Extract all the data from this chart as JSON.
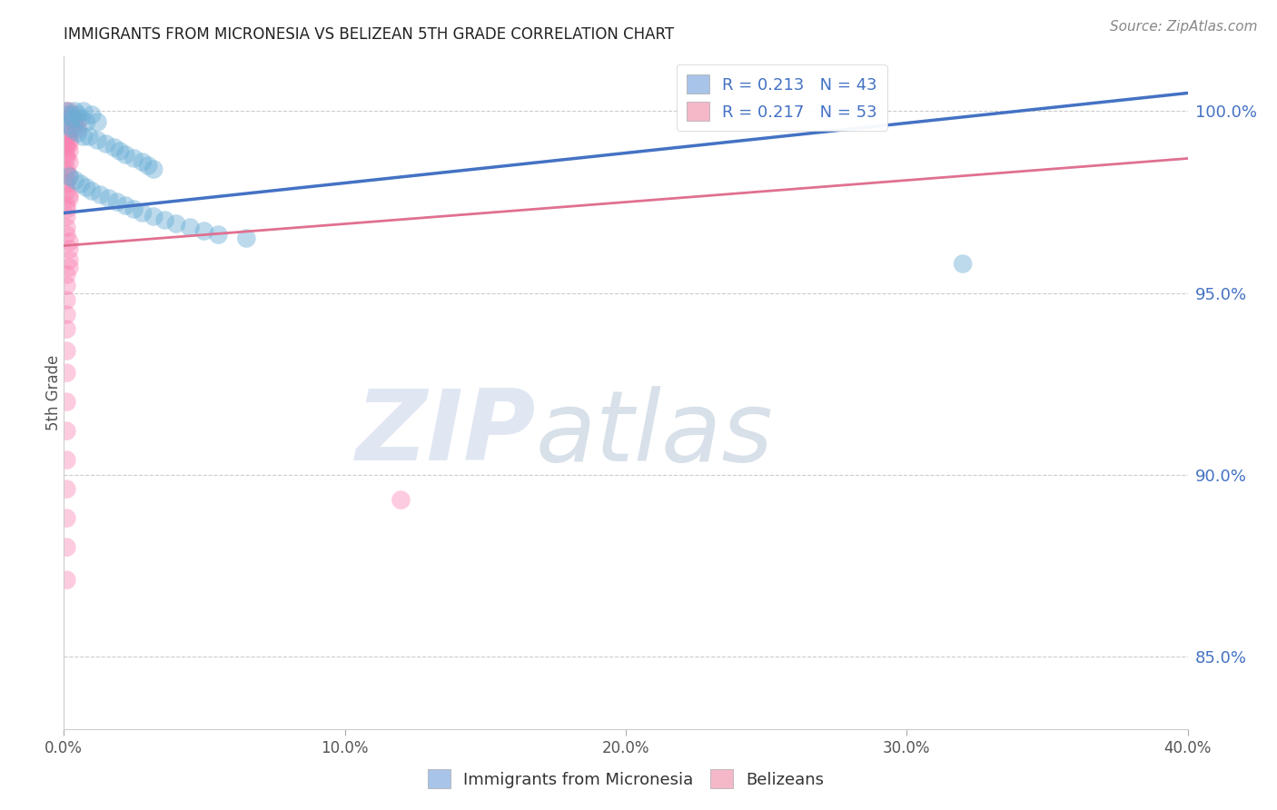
{
  "title": "IMMIGRANTS FROM MICRONESIA VS BELIZEAN 5TH GRADE CORRELATION CHART",
  "source": "Source: ZipAtlas.com",
  "ylabel": "5th Grade",
  "ylabel_right_labels": [
    "100.0%",
    "95.0%",
    "90.0%",
    "85.0%"
  ],
  "ylabel_right_values": [
    1.0,
    0.95,
    0.9,
    0.85
  ],
  "xlim": [
    0.0,
    0.4
  ],
  "ylim": [
    0.83,
    1.015
  ],
  "legend_entries": [
    {
      "label": "R = 0.213   N = 43",
      "color": "#a8c4e8"
    },
    {
      "label": "R = 0.217   N = 53",
      "color": "#f5b8c8"
    }
  ],
  "blue_scatter": [
    [
      0.001,
      1.0
    ],
    [
      0.002,
      0.999
    ],
    [
      0.003,
      0.998
    ],
    [
      0.004,
      1.0
    ],
    [
      0.005,
      0.999
    ],
    [
      0.006,
      0.998
    ],
    [
      0.007,
      1.0
    ],
    [
      0.008,
      0.997
    ],
    [
      0.01,
      0.999
    ],
    [
      0.012,
      0.997
    ],
    [
      0.002,
      0.996
    ],
    [
      0.003,
      0.995
    ],
    [
      0.005,
      0.994
    ],
    [
      0.007,
      0.993
    ],
    [
      0.009,
      0.993
    ],
    [
      0.012,
      0.992
    ],
    [
      0.015,
      0.991
    ],
    [
      0.018,
      0.99
    ],
    [
      0.02,
      0.989
    ],
    [
      0.022,
      0.988
    ],
    [
      0.025,
      0.987
    ],
    [
      0.028,
      0.986
    ],
    [
      0.03,
      0.985
    ],
    [
      0.032,
      0.984
    ],
    [
      0.002,
      0.982
    ],
    [
      0.004,
      0.981
    ],
    [
      0.006,
      0.98
    ],
    [
      0.008,
      0.979
    ],
    [
      0.01,
      0.978
    ],
    [
      0.013,
      0.977
    ],
    [
      0.016,
      0.976
    ],
    [
      0.019,
      0.975
    ],
    [
      0.022,
      0.974
    ],
    [
      0.025,
      0.973
    ],
    [
      0.028,
      0.972
    ],
    [
      0.032,
      0.971
    ],
    [
      0.036,
      0.97
    ],
    [
      0.04,
      0.969
    ],
    [
      0.045,
      0.968
    ],
    [
      0.05,
      0.967
    ],
    [
      0.055,
      0.966
    ],
    [
      0.32,
      0.958
    ],
    [
      0.065,
      0.965
    ]
  ],
  "pink_scatter": [
    [
      0.001,
      1.0
    ],
    [
      0.001,
      0.999
    ],
    [
      0.002,
      1.0
    ],
    [
      0.002,
      0.998
    ],
    [
      0.003,
      0.999
    ],
    [
      0.003,
      0.997
    ],
    [
      0.004,
      0.998
    ],
    [
      0.004,
      0.996
    ],
    [
      0.005,
      0.997
    ],
    [
      0.005,
      0.995
    ],
    [
      0.001,
      0.994
    ],
    [
      0.001,
      0.993
    ],
    [
      0.002,
      0.994
    ],
    [
      0.002,
      0.992
    ],
    [
      0.001,
      0.991
    ],
    [
      0.001,
      0.99
    ],
    [
      0.002,
      0.991
    ],
    [
      0.002,
      0.989
    ],
    [
      0.001,
      0.988
    ],
    [
      0.001,
      0.987
    ],
    [
      0.002,
      0.986
    ],
    [
      0.001,
      0.984
    ],
    [
      0.001,
      0.983
    ],
    [
      0.002,
      0.982
    ],
    [
      0.001,
      0.981
    ],
    [
      0.001,
      0.98
    ],
    [
      0.001,
      0.978
    ],
    [
      0.002,
      0.977
    ],
    [
      0.002,
      0.976
    ],
    [
      0.001,
      0.974
    ],
    [
      0.001,
      0.973
    ],
    [
      0.001,
      0.971
    ],
    [
      0.001,
      0.968
    ],
    [
      0.001,
      0.966
    ],
    [
      0.002,
      0.964
    ],
    [
      0.002,
      0.962
    ],
    [
      0.002,
      0.959
    ],
    [
      0.002,
      0.957
    ],
    [
      0.001,
      0.955
    ],
    [
      0.001,
      0.952
    ],
    [
      0.001,
      0.948
    ],
    [
      0.001,
      0.944
    ],
    [
      0.001,
      0.94
    ],
    [
      0.001,
      0.934
    ],
    [
      0.001,
      0.928
    ],
    [
      0.001,
      0.92
    ],
    [
      0.001,
      0.912
    ],
    [
      0.001,
      0.904
    ],
    [
      0.001,
      0.896
    ],
    [
      0.001,
      0.888
    ],
    [
      0.001,
      0.88
    ],
    [
      0.12,
      0.893
    ],
    [
      0.001,
      0.871
    ]
  ],
  "blue_line": {
    "x0": 0.0,
    "y0": 0.972,
    "x1": 0.4,
    "y1": 1.005
  },
  "pink_line": {
    "x0": 0.0,
    "y0": 0.963,
    "x1": 0.4,
    "y1": 0.987
  },
  "blue_color": "#6baed6",
  "pink_color": "#fa7eb0",
  "blue_line_color": "#4472c4",
  "pink_line_color": "#e07090",
  "xtick_positions": [
    0.0,
    0.1,
    0.2,
    0.3,
    0.4
  ],
  "xtick_labels": [
    "0.0%",
    "10.0%",
    "20.0%",
    "30.0%",
    "40.0%"
  ]
}
